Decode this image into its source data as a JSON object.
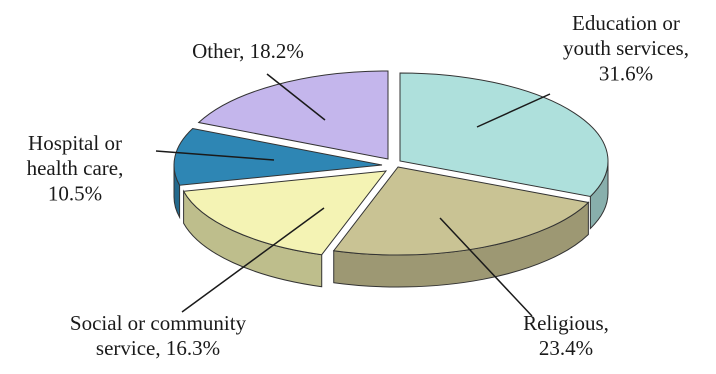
{
  "chart_data": {
    "type": "pie",
    "style": "3d-exploded",
    "title": "",
    "slices": [
      {
        "label": "Education or youth services",
        "value": 31.6,
        "label_lines": [
          "Education or",
          "youth services,",
          "31.6%"
        ],
        "color": "#aee0dc"
      },
      {
        "label": "Religious",
        "value": 23.4,
        "label_lines": [
          "Religious,",
          "23.4%"
        ],
        "color": "#c9c394"
      },
      {
        "label": "Social or community service",
        "value": 16.3,
        "label_lines": [
          "Social or community",
          "service, 16.3%"
        ],
        "color": "#f4f3b4"
      },
      {
        "label": "Hospital or health care",
        "value": 10.5,
        "label_lines": [
          "Hospital or",
          "health care,",
          "10.5%"
        ],
        "color": "#2e86b4"
      },
      {
        "label": "Other",
        "value": 18.2,
        "label_lines": [
          "Other, 18.2%"
        ],
        "color": "#c4b6ec"
      }
    ]
  }
}
